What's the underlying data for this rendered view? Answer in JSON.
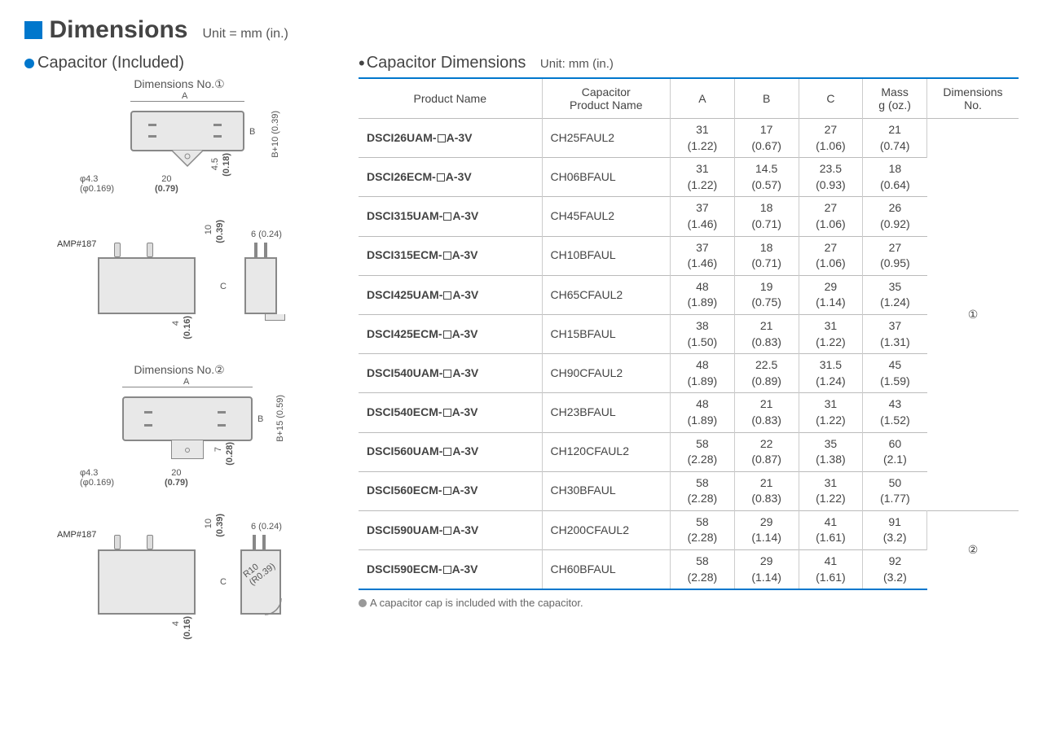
{
  "title": "Dimensions",
  "title_unit": "Unit = mm (in.)",
  "left": {
    "heading": "Capacitor (Included)",
    "dim_no1": "Dimensions No.①",
    "dim_no2": "Dimensions No.②",
    "amp": "AMP#187",
    "d1": {
      "A": "A",
      "B": "B",
      "phi": "φ4.3",
      "phi_in": "(φ0.169)",
      "w20": "20",
      "w20_in": "(0.79)",
      "h45": "4.5",
      "h45_in": "(0.18)",
      "bp10": "B+10 (0.39)"
    },
    "d1side": {
      "h10": "10",
      "h10_in": "(0.39)",
      "w6": "6 (0.24)",
      "C": "C",
      "b4": "4",
      "b4_in": "(0.16)"
    },
    "d2": {
      "A": "A",
      "B": "B",
      "phi": "φ4.3",
      "phi_in": "(φ0.169)",
      "w20": "20",
      "w20_in": "(0.79)",
      "h7": "7",
      "h7_in": "(0.28)",
      "bp15": "B+15 (0.59)"
    },
    "d2side": {
      "h10": "10",
      "h10_in": "(0.39)",
      "w6": "6 (0.24)",
      "C": "C",
      "b4": "4",
      "b4_in": "(0.16)",
      "r10": "R10",
      "r10_in": "(R0.39)"
    }
  },
  "table": {
    "heading": "Capacitor Dimensions",
    "unit": "Unit: mm (in.)",
    "columns": [
      "Product Name",
      "Capacitor\nProduct Name",
      "A",
      "B",
      "C",
      "Mass\ng (oz.)",
      "Dimensions\nNo."
    ],
    "rows": [
      {
        "p": "DSCI26UAM-",
        "suf": "A-3V",
        "cap": "CH25FAUL2",
        "A": "31",
        "Ai": "(1.22)",
        "B": "17",
        "Bi": "(0.67)",
        "C": "27",
        "Ci": "(1.06)",
        "M": "21",
        "Mi": "(0.74)"
      },
      {
        "p": "DSCI26ECM-",
        "suf": "A-3V",
        "cap": "CH06BFAUL",
        "A": "31",
        "Ai": "(1.22)",
        "B": "14.5",
        "Bi": "(0.57)",
        "C": "23.5",
        "Ci": "(0.93)",
        "M": "18",
        "Mi": "(0.64)"
      },
      {
        "p": "DSCI315UAM-",
        "suf": "A-3V",
        "cap": "CH45FAUL2",
        "A": "37",
        "Ai": "(1.46)",
        "B": "18",
        "Bi": "(0.71)",
        "C": "27",
        "Ci": "(1.06)",
        "M": "26",
        "Mi": "(0.92)"
      },
      {
        "p": "DSCI315ECM-",
        "suf": "A-3V",
        "cap": "CH10BFAUL",
        "A": "37",
        "Ai": "(1.46)",
        "B": "18",
        "Bi": "(0.71)",
        "C": "27",
        "Ci": "(1.06)",
        "M": "27",
        "Mi": "(0.95)"
      },
      {
        "p": "DSCI425UAM-",
        "suf": "A-3V",
        "cap": "CH65CFAUL2",
        "A": "48",
        "Ai": "(1.89)",
        "B": "19",
        "Bi": "(0.75)",
        "C": "29",
        "Ci": "(1.14)",
        "M": "35",
        "Mi": "(1.24)"
      },
      {
        "p": "DSCI425ECM-",
        "suf": "A-3V",
        "cap": "CH15BFAUL",
        "A": "38",
        "Ai": "(1.50)",
        "B": "21",
        "Bi": "(0.83)",
        "C": "31",
        "Ci": "(1.22)",
        "M": "37",
        "Mi": "(1.31)"
      },
      {
        "p": "DSCI540UAM-",
        "suf": "A-3V",
        "cap": "CH90CFAUL2",
        "A": "48",
        "Ai": "(1.89)",
        "B": "22.5",
        "Bi": "(0.89)",
        "C": "31.5",
        "Ci": "(1.24)",
        "M": "45",
        "Mi": "(1.59)"
      },
      {
        "p": "DSCI540ECM-",
        "suf": "A-3V",
        "cap": "CH23BFAUL",
        "A": "48",
        "Ai": "(1.89)",
        "B": "21",
        "Bi": "(0.83)",
        "C": "31",
        "Ci": "(1.22)",
        "M": "43",
        "Mi": "(1.52)"
      },
      {
        "p": "DSCI560UAM-",
        "suf": "A-3V",
        "cap": "CH120CFAUL2",
        "A": "58",
        "Ai": "(2.28)",
        "B": "22",
        "Bi": "(0.87)",
        "C": "35",
        "Ci": "(1.38)",
        "M": "60",
        "Mi": "(2.1)"
      },
      {
        "p": "DSCI560ECM-",
        "suf": "A-3V",
        "cap": "CH30BFAUL",
        "A": "58",
        "Ai": "(2.28)",
        "B": "21",
        "Bi": "(0.83)",
        "C": "31",
        "Ci": "(1.22)",
        "M": "50",
        "Mi": "(1.77)"
      },
      {
        "p": "DSCI590UAM-",
        "suf": "A-3V",
        "cap": "CH200CFAUL2",
        "A": "58",
        "Ai": "(2.28)",
        "B": "29",
        "Bi": "(1.14)",
        "C": "41",
        "Ci": "(1.61)",
        "M": "91",
        "Mi": "(3.2)"
      },
      {
        "p": "DSCI590ECM-",
        "suf": "A-3V",
        "cap": "CH60BFAUL",
        "A": "58",
        "Ai": "(2.28)",
        "B": "29",
        "Bi": "(1.14)",
        "C": "41",
        "Ci": "(1.61)",
        "M": "92",
        "Mi": "(3.2)"
      }
    ],
    "dim1": "①",
    "dim2": "②",
    "dim1_span": 10,
    "dim2_span": 2
  },
  "footnote": "A capacitor cap is included with the capacitor."
}
